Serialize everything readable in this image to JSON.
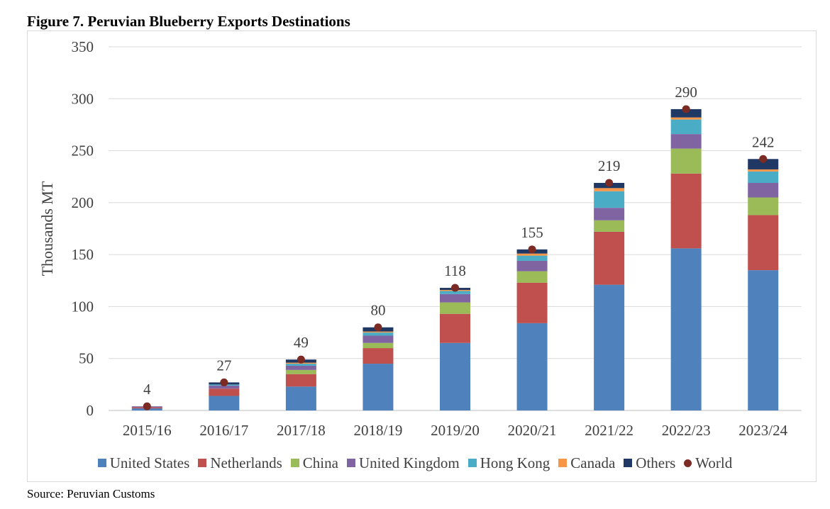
{
  "figure_title": "Figure 7. Peruvian Blueberry Exports Destinations",
  "source_note": "Source: Peruvian Customs",
  "chart_data": {
    "type": "bar",
    "stacked": true,
    "ylabel": "Thousands MT",
    "ylim": [
      0,
      350
    ],
    "yticks": [
      0,
      50,
      100,
      150,
      200,
      250,
      300,
      350
    ],
    "grid": true,
    "legend_position": "bottom",
    "categories": [
      "2015/16",
      "2016/17",
      "2017/18",
      "2018/19",
      "2019/20",
      "2020/21",
      "2021/22",
      "2022/23",
      "2023/24"
    ],
    "series": [
      {
        "name": "United States",
        "color": "#4f81bd",
        "values": [
          2,
          14,
          23,
          45,
          65,
          84,
          121,
          156,
          135
        ]
      },
      {
        "name": "Netherlands",
        "color": "#c0504d",
        "values": [
          1,
          7,
          12,
          15,
          28,
          39,
          51,
          72,
          53
        ]
      },
      {
        "name": "China",
        "color": "#9bbb59",
        "values": [
          0,
          0,
          4,
          5,
          11,
          11,
          11,
          24,
          17
        ]
      },
      {
        "name": "United Kingdom",
        "color": "#8064a2",
        "values": [
          1,
          3,
          4,
          7,
          8,
          10,
          12,
          14,
          14
        ]
      },
      {
        "name": "Hong Kong",
        "color": "#4bacc6",
        "values": [
          0,
          1,
          2,
          3,
          3,
          5,
          16,
          14,
          11
        ]
      },
      {
        "name": "Canada",
        "color": "#f79646",
        "values": [
          0,
          0,
          1,
          1,
          1,
          2,
          3,
          2,
          2
        ]
      },
      {
        "name": "Others",
        "color": "#1f3864",
        "values": [
          0,
          2,
          3,
          4,
          2,
          4,
          5,
          8,
          10
        ]
      }
    ],
    "world": {
      "name": "World",
      "color": "#7b2a24",
      "values": [
        4,
        27,
        49,
        80,
        118,
        155,
        219,
        290,
        242
      ]
    }
  }
}
